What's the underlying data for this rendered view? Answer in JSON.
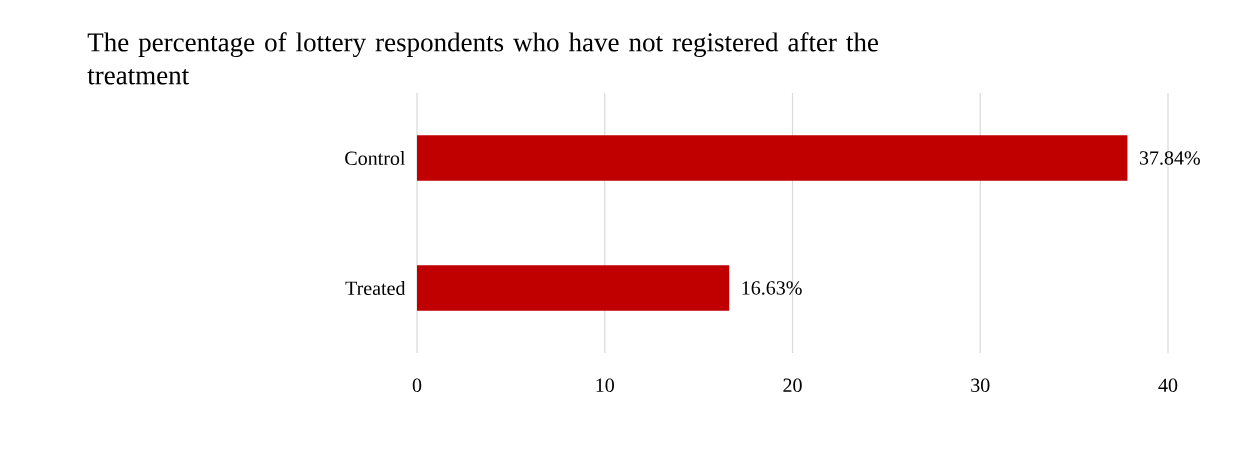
{
  "chart_data": {
    "type": "bar",
    "orientation": "horizontal",
    "title": "The percentage of lottery respondents who have not registered after the treatment",
    "categories": [
      "Control",
      "Treated"
    ],
    "values": [
      37.84,
      16.63
    ],
    "value_labels": [
      "37.84%",
      "16.63%"
    ],
    "color": "#c00000",
    "xlim": [
      0,
      40
    ],
    "xticks": [
      0,
      10,
      20,
      30,
      40
    ],
    "grid": "x"
  }
}
